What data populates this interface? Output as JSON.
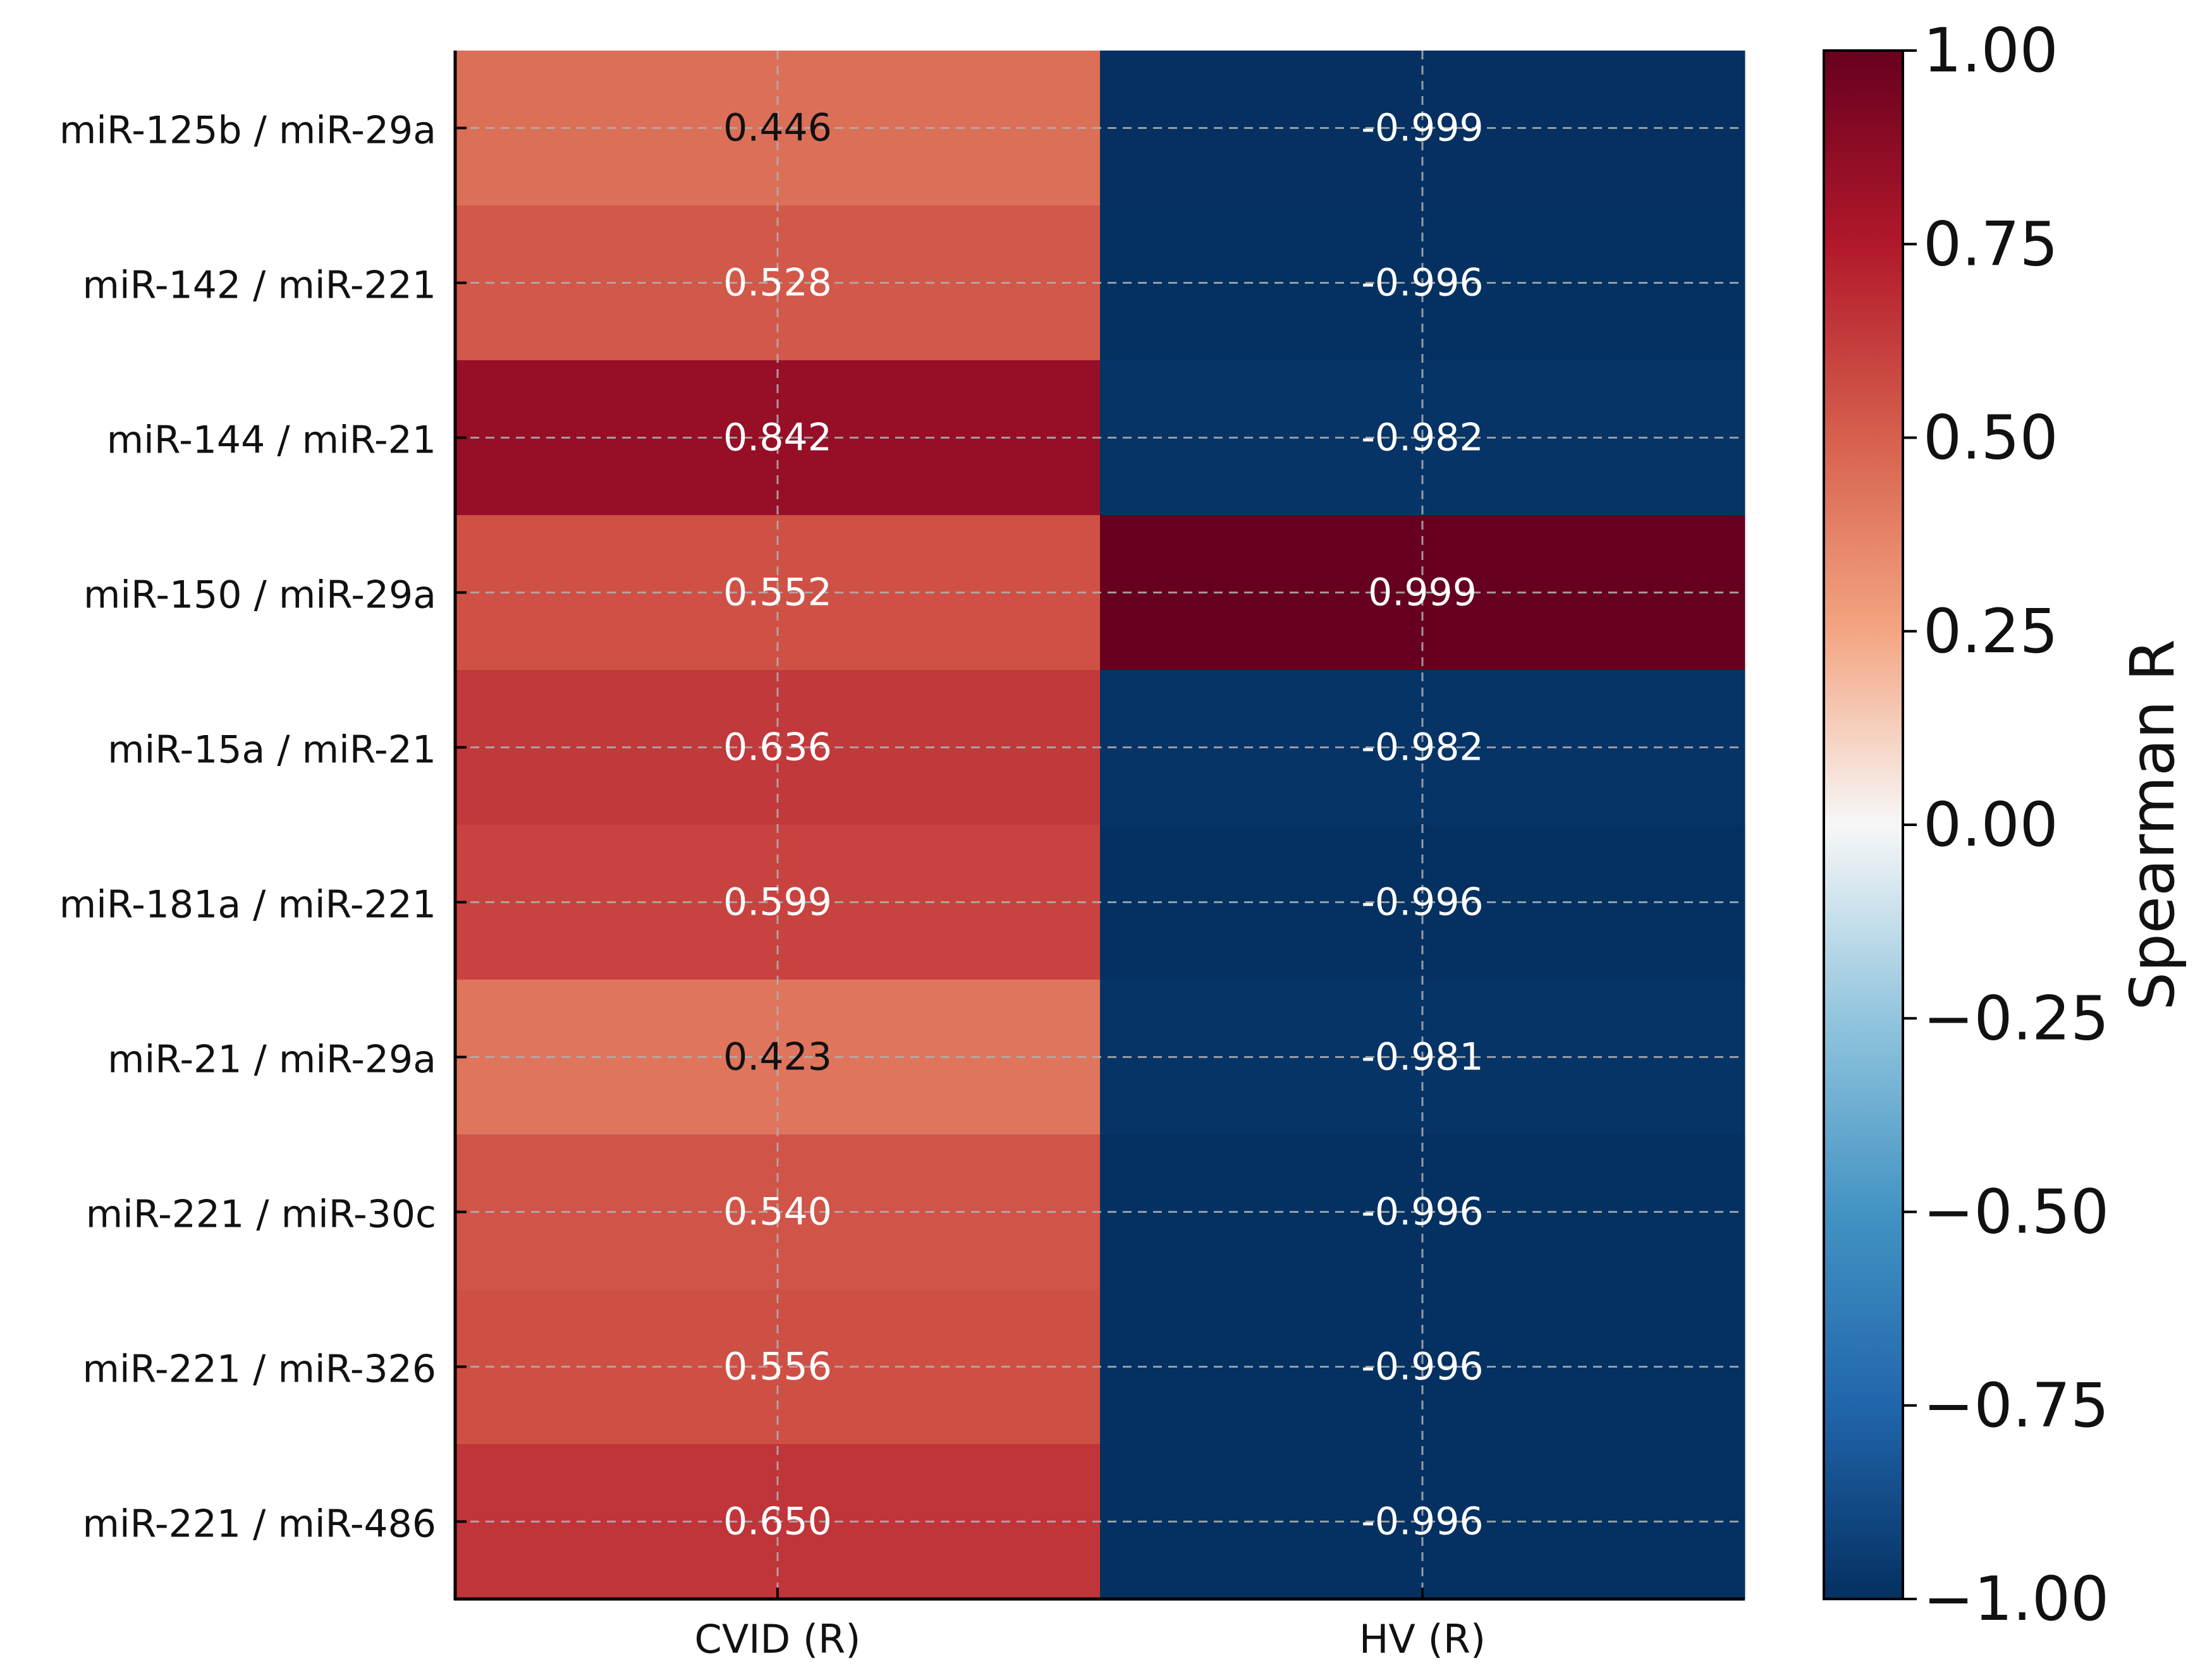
{
  "chart_data": {
    "type": "heatmap",
    "rows": [
      "miR-125b / miR-29a",
      "miR-142 / miR-221",
      "miR-144 / miR-21",
      "miR-150 / miR-29a",
      "miR-15a / miR-21",
      "miR-181a / miR-221",
      "miR-21 / miR-29a",
      "miR-221 / miR-30c",
      "miR-221 / miR-326",
      "miR-221 / miR-486"
    ],
    "columns": [
      "CVID (R)",
      "HV (R)"
    ],
    "values": [
      [
        0.446,
        -0.999
      ],
      [
        0.528,
        -0.996
      ],
      [
        0.842,
        -0.982
      ],
      [
        0.552,
        0.999
      ],
      [
        0.636,
        -0.982
      ],
      [
        0.599,
        -0.996
      ],
      [
        0.423,
        -0.981
      ],
      [
        0.54,
        -0.996
      ],
      [
        0.556,
        -0.996
      ],
      [
        0.65,
        -0.996
      ]
    ],
    "value_labels": [
      [
        "0.446",
        "-0.999"
      ],
      [
        "0.528",
        "-0.996"
      ],
      [
        "0.842",
        "-0.982"
      ],
      [
        "0.552",
        "0.999"
      ],
      [
        "0.636",
        "-0.982"
      ],
      [
        "0.599",
        "-0.996"
      ],
      [
        "0.423",
        "-0.981"
      ],
      [
        "0.540",
        "-0.996"
      ],
      [
        "0.556",
        "-0.996"
      ],
      [
        "0.650",
        "-0.996"
      ]
    ],
    "colormap": "RdBu_r",
    "vmin": -1.0,
    "vmax": 1.0,
    "grid": true,
    "colorbar": {
      "label": "Spearman R",
      "ticks": [
        1.0,
        0.75,
        0.5,
        0.25,
        0.0,
        -0.25,
        -0.5,
        -0.75,
        -1.0
      ],
      "tick_labels": [
        "1.00",
        "0.75",
        "0.50",
        "0.25",
        "0.00",
        "−0.25",
        "−0.50",
        "−0.75",
        "−1.00"
      ]
    }
  }
}
